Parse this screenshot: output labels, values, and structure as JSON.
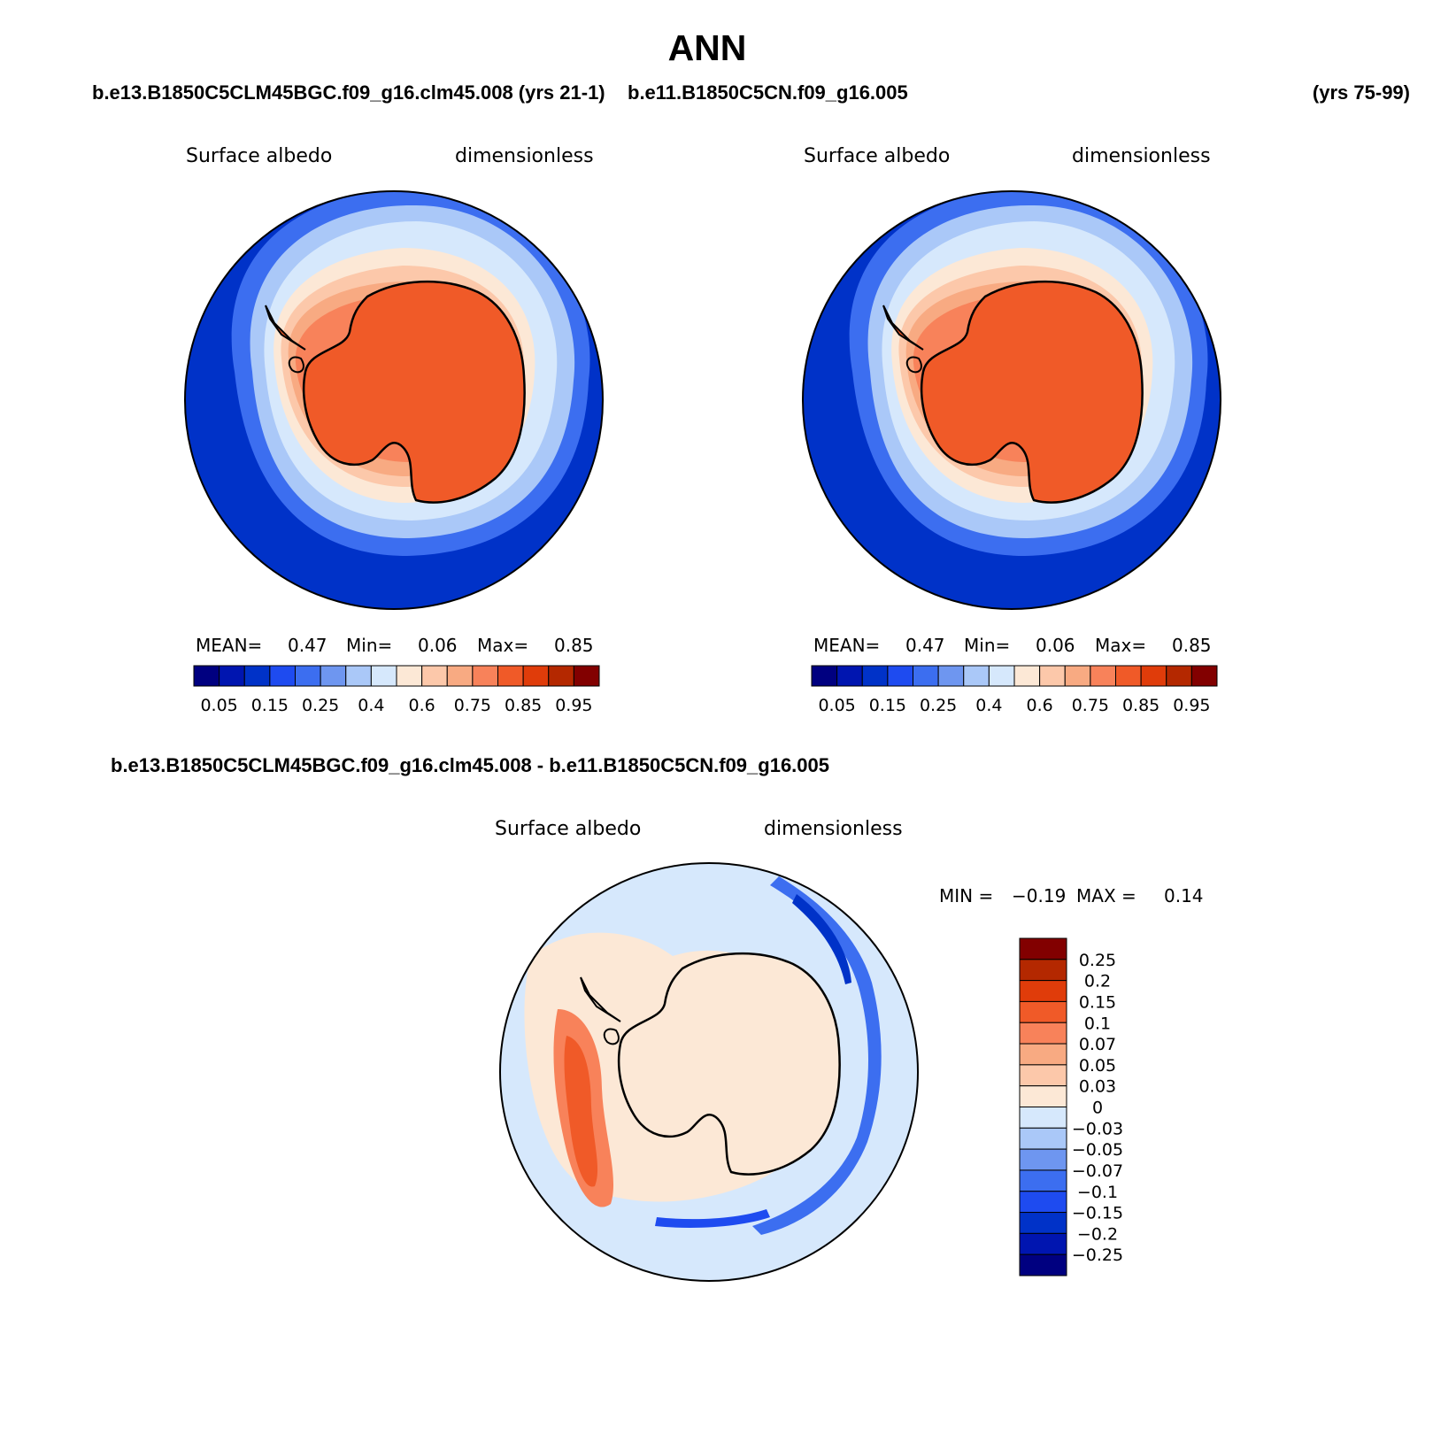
{
  "main_title": "ANN",
  "case1_title": "b.e13.B1850C5CLM45BGC.f09_g16.clm45.008 (yrs 21-1)",
  "case2_title": "b.e11.B1850C5CN.f09_g16.005",
  "case2_years": "(yrs 75-99)",
  "diff_title": "b.e13.B1850C5CLM45BGC.f09_g16.clm45.008 - b.e11.B1850C5CN.f09_g16.005",
  "panels": [
    {
      "variable": "Surface albedo",
      "units": "dimensionless",
      "stats": {
        "mean_label": "MEAN=",
        "mean": "0.47",
        "min_label": "Min=",
        "min": "0.06",
        "max_label": "Max=",
        "max": "0.85"
      }
    },
    {
      "variable": "Surface albedo",
      "units": "dimensionless",
      "stats": {
        "mean_label": "MEAN=",
        "mean": "0.47",
        "min_label": "Min=",
        "min": "0.06",
        "max_label": "Max=",
        "max": "0.85"
      }
    }
  ],
  "diff_panel": {
    "variable": "Surface albedo",
    "units": "dimensionless",
    "min_label": "MIN =",
    "min": "−0.19",
    "max_label": "MAX =",
    "max": "0.14"
  },
  "abs_colorbar": {
    "colors": [
      "#000080",
      "#0015b0",
      "#0032c8",
      "#1e4bf0",
      "#3c6ef0",
      "#6e96f0",
      "#aac8f8",
      "#d6e8fc",
      "#fce8d6",
      "#fcc8aa",
      "#f8aa82",
      "#f8825a",
      "#f05a28",
      "#e03c0a",
      "#b42800",
      "#820000"
    ],
    "tick_labels": [
      "0.05",
      "0.15",
      "0.25",
      "0.4",
      "0.6",
      "0.75",
      "0.85",
      "0.95"
    ]
  },
  "diff_colorbar": {
    "colors": [
      "#820000",
      "#b42800",
      "#e03c0a",
      "#f05a28",
      "#f8825a",
      "#f8aa82",
      "#fcc8aa",
      "#fce8d6",
      "#d6e8fc",
      "#aac8f8",
      "#6e96f0",
      "#3c6ef0",
      "#1e4bf0",
      "#0032c8",
      "#0015b0",
      "#000080"
    ],
    "tick_labels": [
      "0.25",
      "0.2",
      "0.15",
      "0.1",
      "0.07",
      "0.05",
      "0.03",
      "0",
      "−0.03",
      "−0.05",
      "−0.07",
      "−0.1",
      "−0.15",
      "−0.2",
      "−0.25"
    ]
  }
}
